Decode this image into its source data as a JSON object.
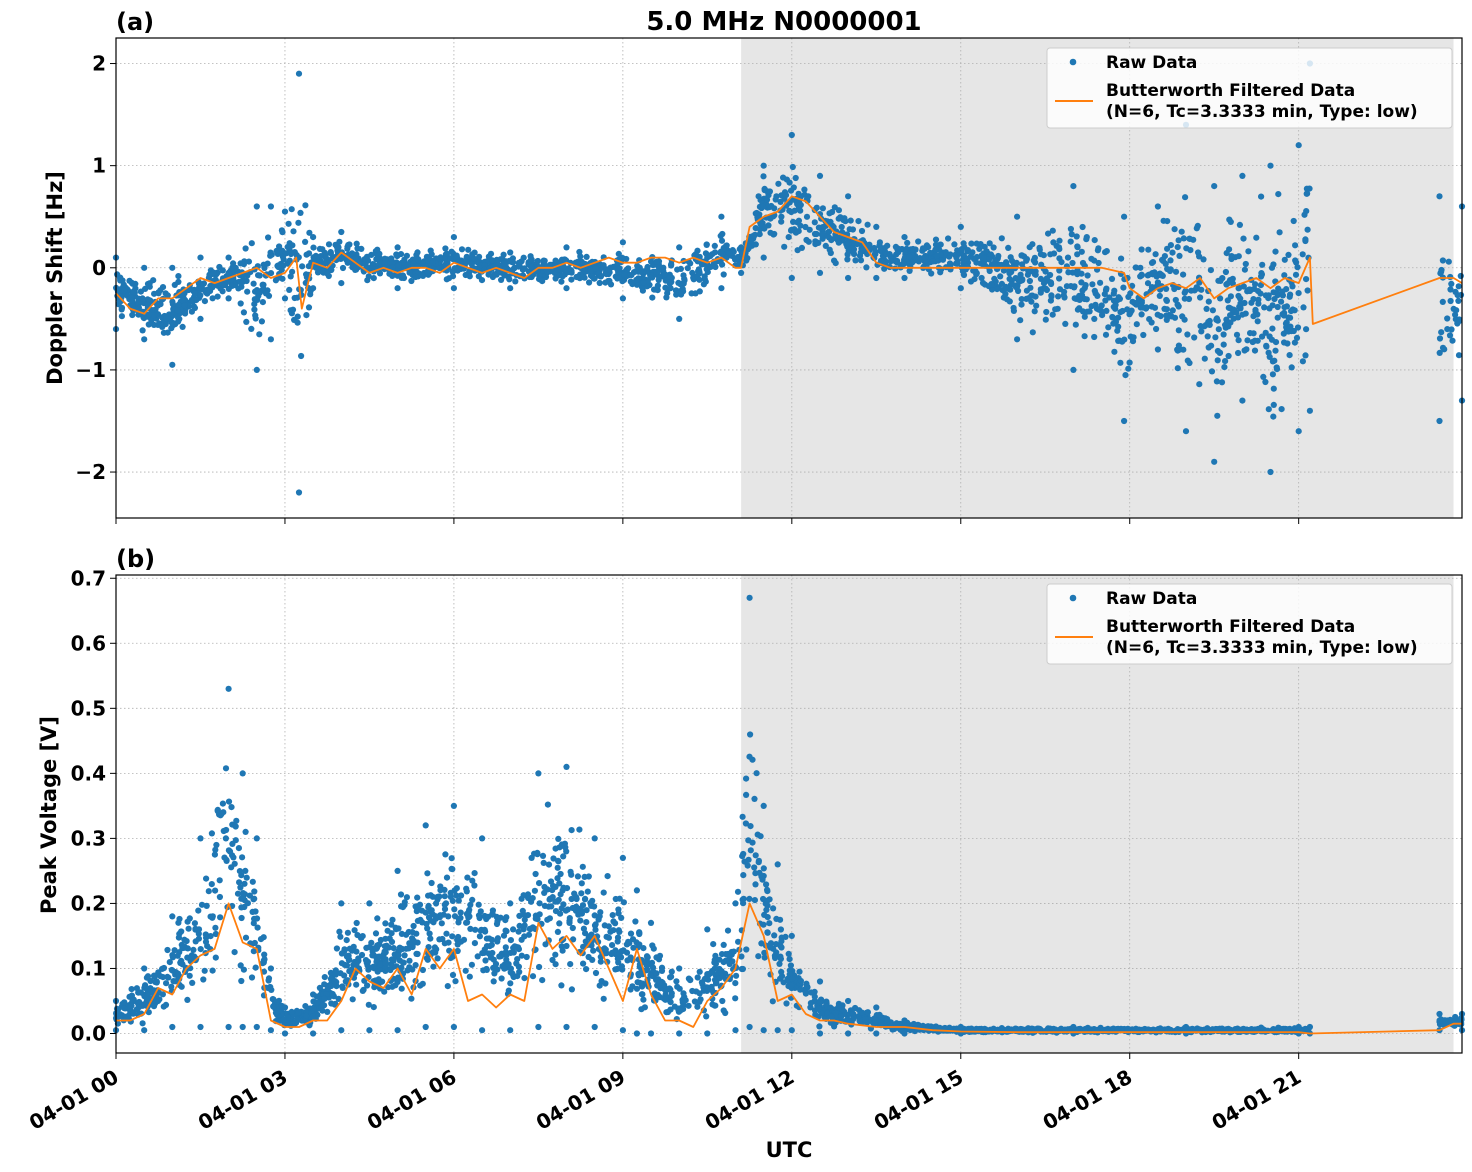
{
  "figure": {
    "title": "5.0 MHz N0000001",
    "xlabel": "UTC",
    "x_tick_labels": [
      "04-01 00",
      "04-01 03",
      "04-01 06",
      "04-01 09",
      "04-01 12",
      "04-01 15",
      "04-01 18",
      "04-01 21"
    ],
    "shaded_interval_hours": [
      11.1,
      23.75
    ],
    "colors": {
      "raw": "#1f77b4",
      "filtered": "#ff7f0e",
      "shade": "#e6e6e6"
    }
  },
  "chart_data": [
    {
      "type": "scatter",
      "panel_label": "(a)",
      "ylabel": "Doppler Shift [Hz]",
      "xlim_hours": [
        0,
        23.9
      ],
      "ylim": [
        -2.45,
        2.25
      ],
      "y_ticks": [
        2,
        1,
        0,
        -1,
        -2
      ],
      "y_tick_labels": [
        "2",
        "1",
        "0",
        "−1",
        "−2"
      ],
      "grid": true,
      "legend_position": "top-right",
      "legend": {
        "raw_label": "Raw Data",
        "filtered_line1": "Butterworth Filtered Data",
        "filtered_line2": "(N=6, Tc=3.3333 min, Type: low)"
      },
      "data_gap_hours": [
        21.2,
        23.5
      ],
      "series": [
        {
          "name": "Butterworth Filtered Data",
          "x_hours": [
            0,
            0.25,
            0.5,
            0.75,
            1.0,
            1.25,
            1.5,
            1.75,
            2.0,
            2.25,
            2.5,
            2.75,
            3.0,
            3.2,
            3.3,
            3.5,
            3.75,
            4.0,
            4.25,
            4.5,
            4.75,
            5.0,
            5.25,
            5.5,
            5.75,
            6.0,
            6.25,
            6.5,
            6.75,
            7.0,
            7.25,
            7.5,
            7.75,
            8.0,
            8.25,
            8.5,
            8.75,
            9.0,
            9.25,
            9.5,
            9.75,
            10.0,
            10.25,
            10.5,
            10.75,
            11.0,
            11.1,
            11.25,
            11.5,
            11.75,
            12.0,
            12.25,
            12.5,
            12.75,
            13.0,
            13.25,
            13.5,
            13.75,
            14.0,
            14.5,
            15.0,
            15.5,
            16.0,
            16.5,
            17.0,
            17.5,
            17.9,
            18.0,
            18.25,
            18.5,
            18.75,
            19.0,
            19.25,
            19.5,
            19.75,
            20.0,
            20.25,
            20.5,
            20.75,
            21.0,
            21.2,
            21.25,
            23.5,
            23.75,
            23.9
          ],
          "values": [
            -0.25,
            -0.4,
            -0.45,
            -0.3,
            -0.3,
            -0.2,
            -0.1,
            -0.15,
            -0.1,
            -0.05,
            0.0,
            -0.1,
            -0.05,
            0.1,
            -0.4,
            0.05,
            0.0,
            0.15,
            0.05,
            -0.05,
            0.0,
            -0.05,
            0.0,
            0.0,
            -0.05,
            0.05,
            0.0,
            -0.05,
            0.0,
            -0.05,
            -0.1,
            0.0,
            0.0,
            0.05,
            0.0,
            0.05,
            0.1,
            0.05,
            0.05,
            0.1,
            0.1,
            0.05,
            0.1,
            0.05,
            0.1,
            0.0,
            0.0,
            0.4,
            0.5,
            0.55,
            0.7,
            0.65,
            0.5,
            0.35,
            0.3,
            0.25,
            0.05,
            0.0,
            0.0,
            0.0,
            0.0,
            0.0,
            0.0,
            0.0,
            0.0,
            0.0,
            -0.05,
            -0.2,
            -0.3,
            -0.2,
            -0.15,
            -0.2,
            -0.1,
            -0.3,
            -0.2,
            -0.15,
            -0.1,
            -0.2,
            -0.1,
            -0.15,
            0.1,
            -0.55,
            -0.1,
            -0.1,
            -0.15
          ]
        },
        {
          "name": "Raw Data",
          "x_hours": [
            0,
            0.5,
            1.0,
            1.5,
            2.0,
            2.5,
            2.75,
            3.0,
            3.25,
            3.5,
            4.0,
            5.0,
            6.0,
            7.0,
            8.0,
            9.0,
            10.0,
            10.75,
            11.1,
            11.5,
            12.0,
            12.5,
            13.0,
            13.5,
            14.0,
            15.0,
            16.0,
            17.0,
            17.9,
            18.5,
            19.0,
            19.5,
            20.0,
            20.5,
            21.0,
            21.2,
            23.5,
            23.9
          ],
          "upper_envelope": [
            0.1,
            0.0,
            0.0,
            0.1,
            0.1,
            0.6,
            0.6,
            0.55,
            1.9,
            0.3,
            0.35,
            0.2,
            0.3,
            0.15,
            0.2,
            0.25,
            0.2,
            0.5,
            0.2,
            1.0,
            1.3,
            0.9,
            0.7,
            0.4,
            0.3,
            0.4,
            0.5,
            0.8,
            0.5,
            0.6,
            1.4,
            0.8,
            0.9,
            1.0,
            1.2,
            2.0,
            0.7,
            0.6
          ],
          "lower_envelope": [
            -0.6,
            -0.7,
            -0.95,
            -0.5,
            -0.3,
            -1.0,
            -0.7,
            -0.3,
            -2.2,
            -0.2,
            -0.15,
            -0.2,
            -0.2,
            -0.2,
            -0.2,
            -0.3,
            -0.5,
            -0.2,
            -0.05,
            0.1,
            -0.1,
            -0.05,
            -0.1,
            -0.1,
            -0.1,
            -0.2,
            -0.7,
            -1.0,
            -1.5,
            -0.8,
            -1.6,
            -1.9,
            -1.3,
            -2.0,
            -1.6,
            -1.4,
            -1.5,
            -1.3
          ]
        }
      ]
    },
    {
      "type": "scatter",
      "panel_label": "(b)",
      "ylabel": "Peak Voltage [V]",
      "xlim_hours": [
        0,
        23.9
      ],
      "ylim": [
        -0.03,
        0.705
      ],
      "y_ticks": [
        0.0,
        0.1,
        0.2,
        0.3,
        0.4,
        0.5,
        0.6,
        0.7
      ],
      "y_tick_labels": [
        "0.0",
        "0.1",
        "0.2",
        "0.3",
        "0.4",
        "0.5",
        "0.6",
        "0.7"
      ],
      "grid": true,
      "legend_position": "top-right",
      "legend": {
        "raw_label": "Raw Data",
        "filtered_line1": "Butterworth Filtered Data",
        "filtered_line2": "(N=6, Tc=3.3333 min, Type: low)"
      },
      "data_gap_hours": [
        21.2,
        23.5
      ],
      "series": [
        {
          "name": "Butterworth Filtered Data",
          "x_hours": [
            0,
            0.25,
            0.5,
            0.75,
            1.0,
            1.25,
            1.5,
            1.75,
            2.0,
            2.25,
            2.5,
            2.75,
            3.0,
            3.25,
            3.5,
            3.75,
            4.0,
            4.25,
            4.5,
            4.75,
            5.0,
            5.25,
            5.5,
            5.75,
            6.0,
            6.25,
            6.5,
            6.75,
            7.0,
            7.25,
            7.5,
            7.75,
            8.0,
            8.25,
            8.5,
            8.75,
            9.0,
            9.25,
            9.5,
            9.75,
            10.0,
            10.25,
            10.5,
            10.75,
            11.0,
            11.25,
            11.5,
            11.75,
            12.0,
            12.25,
            12.5,
            12.75,
            13.0,
            13.5,
            14.0,
            14.5,
            15.0,
            16.0,
            17.0,
            18.0,
            19.0,
            20.0,
            21.0,
            21.2,
            23.5,
            23.75,
            23.9
          ],
          "values": [
            0.02,
            0.02,
            0.03,
            0.07,
            0.06,
            0.1,
            0.12,
            0.13,
            0.2,
            0.14,
            0.13,
            0.02,
            0.01,
            0.01,
            0.02,
            0.02,
            0.05,
            0.1,
            0.08,
            0.07,
            0.1,
            0.06,
            0.13,
            0.1,
            0.13,
            0.05,
            0.06,
            0.04,
            0.06,
            0.05,
            0.17,
            0.13,
            0.15,
            0.12,
            0.15,
            0.1,
            0.05,
            0.13,
            0.06,
            0.02,
            0.02,
            0.01,
            0.05,
            0.07,
            0.1,
            0.2,
            0.15,
            0.05,
            0.06,
            0.03,
            0.02,
            0.02,
            0.015,
            0.01,
            0.01,
            0.005,
            0.003,
            0.002,
            0.002,
            0.002,
            0.002,
            0.002,
            0.002,
            0.0,
            0.005,
            0.015,
            0.015
          ]
        },
        {
          "name": "Raw Data",
          "x_hours": [
            0,
            0.5,
            1.0,
            1.5,
            2.0,
            2.25,
            2.5,
            2.75,
            3.0,
            3.5,
            4.0,
            4.5,
            5.0,
            5.5,
            6.0,
            6.5,
            7.0,
            7.5,
            8.0,
            8.5,
            9.0,
            9.25,
            9.5,
            10.0,
            10.5,
            11.0,
            11.25,
            11.5,
            11.75,
            12.0,
            12.5,
            13.0,
            13.5,
            14.0,
            15.0,
            17.0,
            19.0,
            21.0,
            21.2,
            23.5,
            23.9
          ],
          "upper_envelope": [
            0.05,
            0.1,
            0.18,
            0.3,
            0.53,
            0.4,
            0.3,
            0.1,
            0.04,
            0.06,
            0.2,
            0.2,
            0.25,
            0.32,
            0.35,
            0.3,
            0.2,
            0.4,
            0.41,
            0.3,
            0.27,
            0.22,
            0.17,
            0.1,
            0.16,
            0.2,
            0.67,
            0.35,
            0.26,
            0.15,
            0.08,
            0.05,
            0.04,
            0.02,
            0.01,
            0.01,
            0.01,
            0.01,
            0.01,
            0.03,
            0.03
          ],
          "lower_envelope": [
            0.005,
            0.005,
            0.01,
            0.01,
            0.01,
            0.01,
            0.01,
            0.005,
            0.0,
            0.0,
            0.005,
            0.005,
            0.005,
            0.01,
            0.01,
            0.005,
            0.005,
            0.01,
            0.01,
            0.01,
            0.005,
            0.0,
            0.0,
            0.0,
            0.0,
            0.005,
            0.01,
            0.005,
            0.005,
            0.005,
            0.0,
            0.0,
            0.0,
            0.0,
            0.0,
            0.0,
            0.0,
            0.0,
            0.0,
            0.005,
            0.005
          ]
        }
      ]
    }
  ]
}
